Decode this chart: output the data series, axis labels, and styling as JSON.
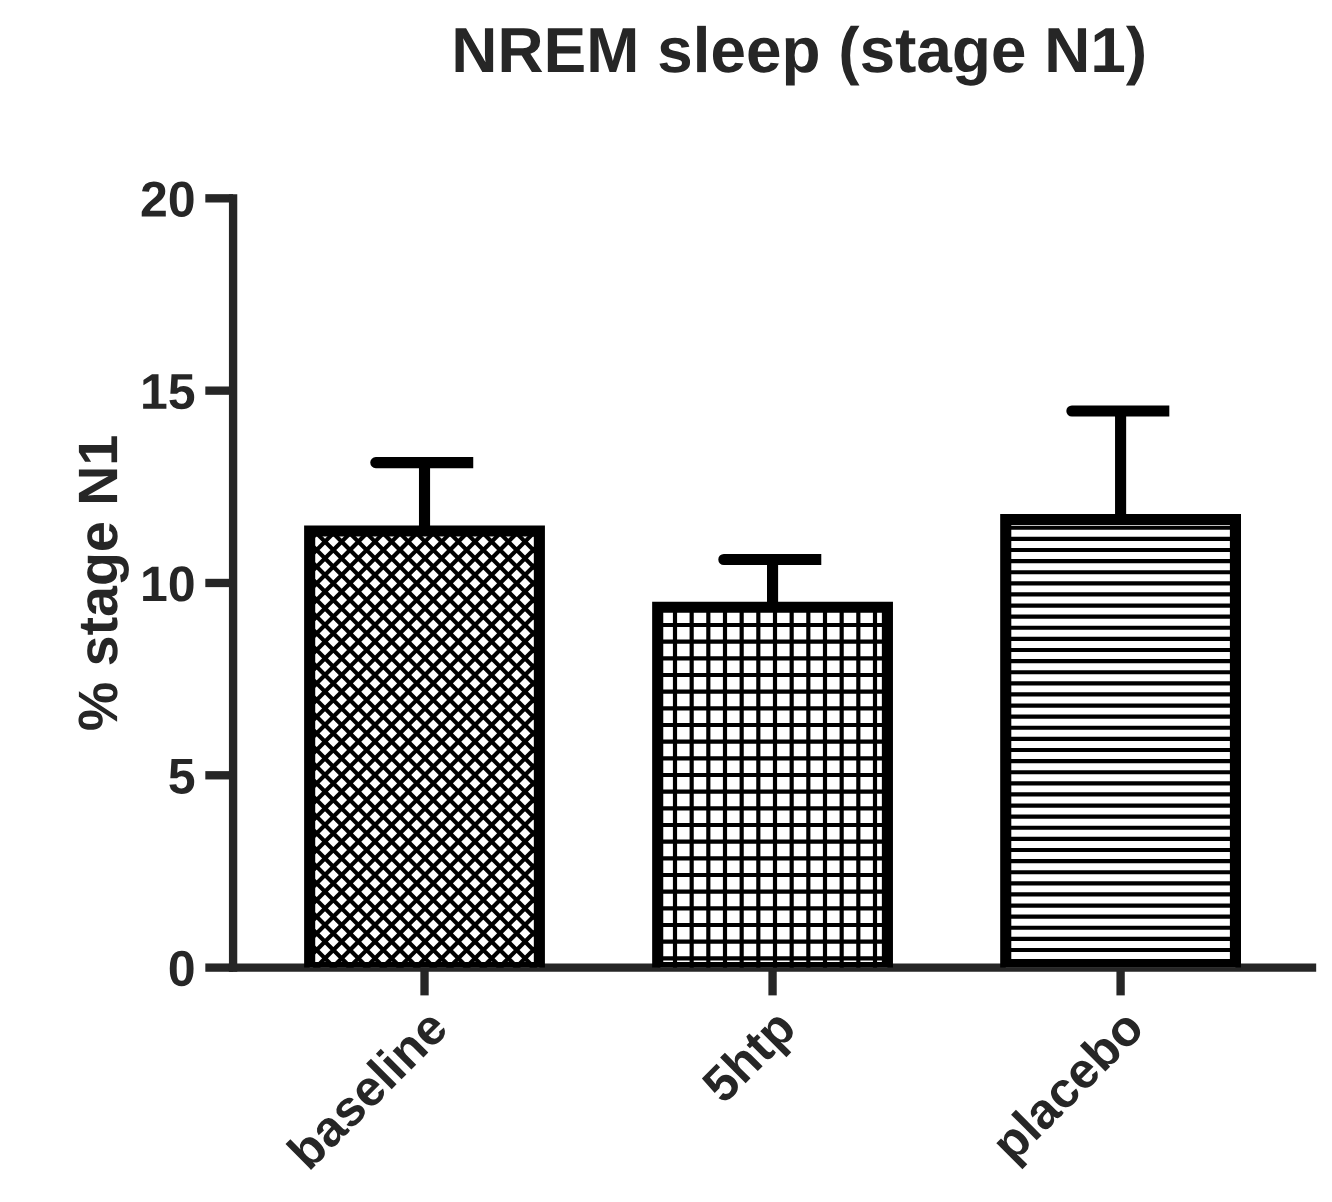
{
  "chart_data": {
    "type": "bar",
    "title": "NREM sleep (stage N1)",
    "ylabel": "% stage N1",
    "categories": [
      "baseline",
      "5htp",
      "placebo"
    ],
    "values": [
      11.35,
      9.37,
      11.65
    ],
    "errors": [
      [
        11.35,
        13.13
      ],
      [
        9.37,
        10.61
      ],
      [
        11.65,
        14.47
      ]
    ],
    "color": "#000000",
    "ylim": [
      0,
      20
    ],
    "yticks": [
      0,
      5,
      10,
      15,
      20
    ],
    "grid": false
  }
}
